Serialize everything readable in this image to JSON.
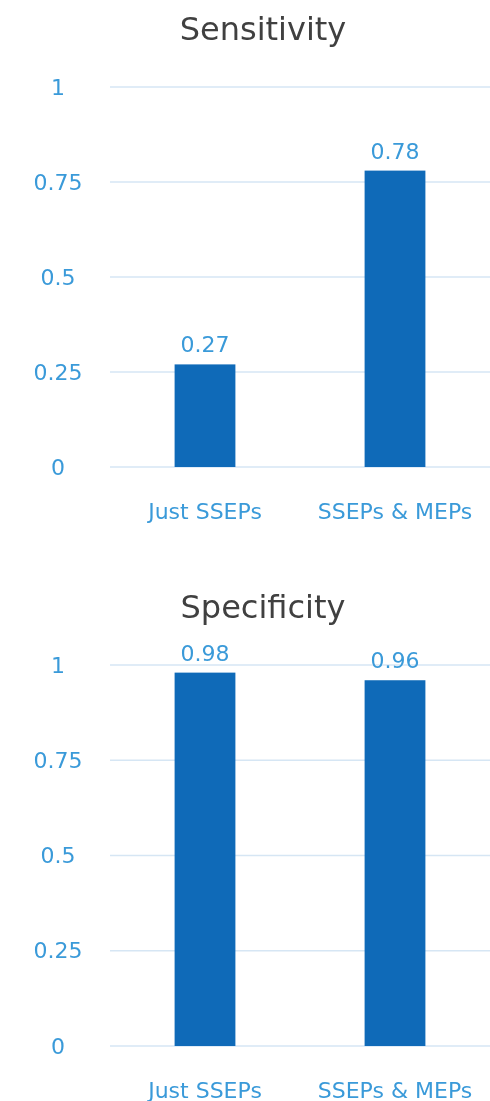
{
  "chart_data": [
    {
      "type": "bar",
      "title": "Sensitivity",
      "categories": [
        "Just SSEPs",
        "SSEPs & MEPs"
      ],
      "values": [
        0.27,
        0.78
      ],
      "color": "#0f6ab8",
      "ylim": [
        0,
        1
      ],
      "yticks": [
        0,
        0.25,
        0.5,
        0.75,
        1
      ],
      "grid": "y",
      "data_labels": true
    },
    {
      "type": "bar",
      "title": "Specificity",
      "categories": [
        "Just SSEPs",
        "SSEPs & MEPs"
      ],
      "values": [
        0.98,
        0.96
      ],
      "color": "#0f6ab8",
      "ylim": [
        0,
        1
      ],
      "yticks": [
        0,
        0.25,
        0.5,
        0.75,
        1
      ],
      "grid": "y",
      "data_labels": true
    }
  ]
}
